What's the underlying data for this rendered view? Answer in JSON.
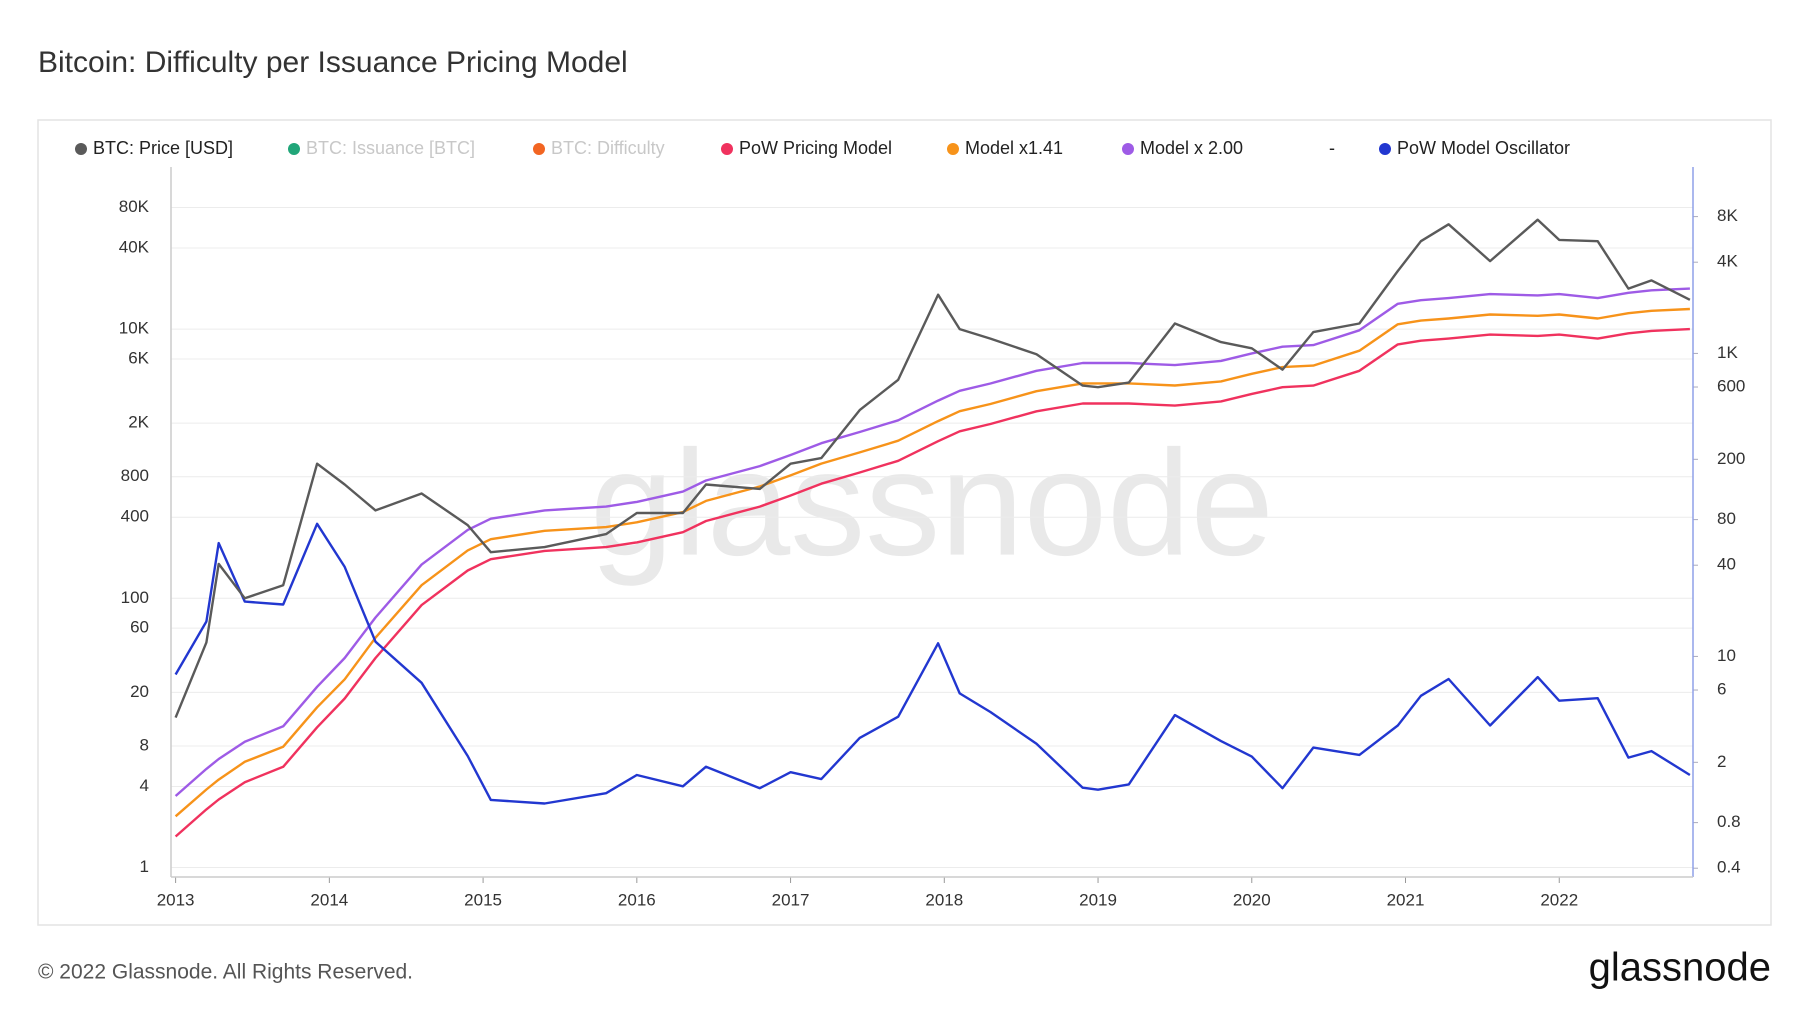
{
  "chart_data": {
    "type": "line",
    "title": "Bitcoin: Difficulty per Issuance Pricing Model",
    "watermark": "glassnode",
    "x": [
      2013.0,
      2013.2,
      2013.28,
      2013.45,
      2013.7,
      2013.92,
      2014.1,
      2014.3,
      2014.6,
      2014.9,
      2015.05,
      2015.4,
      2015.8,
      2016.0,
      2016.3,
      2016.45,
      2016.8,
      2017.0,
      2017.2,
      2017.45,
      2017.7,
      2017.96,
      2018.1,
      2018.3,
      2018.6,
      2018.9,
      2019.0,
      2019.2,
      2019.5,
      2019.8,
      2020.0,
      2020.2,
      2020.4,
      2020.7,
      2020.95,
      2021.1,
      2021.28,
      2021.55,
      2021.86,
      2022.0,
      2022.25,
      2022.45,
      2022.6,
      2022.85
    ],
    "xlim": [
      2012.97,
      2022.87
    ],
    "xticks": [
      2013,
      2014,
      2015,
      2016,
      2017,
      2018,
      2019,
      2020,
      2021,
      2022
    ],
    "ylim": [
      0.85,
      160000
    ],
    "log_y": true,
    "yticks": [
      1,
      4,
      8,
      20,
      60,
      100,
      400,
      800,
      {
        "value": 2000,
        "label": "2K"
      },
      {
        "value": 6000,
        "label": "6K"
      },
      {
        "value": 10000,
        "label": "10K"
      },
      {
        "value": 40000,
        "label": "40K"
      },
      {
        "value": 80000,
        "label": "80K"
      }
    ],
    "y2lim": [
      0.35,
      17000
    ],
    "log_y2": true,
    "y2ticks": [
      0.4,
      0.8,
      2,
      6,
      10,
      40,
      80,
      200,
      600,
      {
        "value": 1000,
        "label": "1K"
      },
      {
        "value": 4000,
        "label": "4K"
      },
      {
        "value": 8000,
        "label": "8K"
      }
    ],
    "grid": true,
    "series": [
      {
        "name": "BTC: Price [USD]",
        "color": "#5a5a5a",
        "visible": true,
        "values": [
          13,
          47,
          180,
          100,
          125,
          1000,
          700,
          450,
          600,
          350,
          220,
          240,
          300,
          430,
          430,
          700,
          650,
          1000,
          1100,
          2500,
          4200,
          18000,
          10000,
          8500,
          6500,
          3800,
          3700,
          4000,
          11000,
          8000,
          7200,
          5000,
          9500,
          11000,
          27000,
          45000,
          60000,
          32000,
          65000,
          46000,
          45000,
          20000,
          23000,
          16500
        ]
      },
      {
        "name": "BTC: Issuance [BTC]",
        "color": "#21a679",
        "visible": false
      },
      {
        "name": "BTC: Difficulty",
        "color": "#f26522",
        "visible": false
      },
      {
        "name": "PoW Pricing Model",
        "color": "#f0325e",
        "visible": true,
        "values": [
          1.7,
          2.7,
          3.2,
          4.3,
          5.6,
          11,
          18,
          36,
          89,
          161,
          195,
          225,
          240,
          260,
          310,
          375,
          480,
          580,
          710,
          860,
          1050,
          1470,
          1740,
          1970,
          2450,
          2800,
          2800,
          2800,
          2700,
          2900,
          3300,
          3700,
          3800,
          4900,
          7700,
          8200,
          8500,
          9100,
          8900,
          9100,
          8500,
          9300,
          9700,
          10000
        ]
      },
      {
        "name": "Model x1.41",
        "color": "#f7931a",
        "visible": true,
        "values": [
          2.4,
          3.8,
          4.5,
          6.1,
          7.9,
          15.5,
          25,
          51,
          125,
          227,
          275,
          317,
          338,
          367,
          437,
          529,
          677,
          818,
          1001,
          1213,
          1481,
          2073,
          2453,
          2778,
          3455,
          3948,
          3948,
          3948,
          3807,
          4089,
          4653,
          5217,
          5358,
          6909,
          10857,
          11562,
          11985,
          12831,
          12549,
          12831,
          11985,
          13113,
          13677,
          14100
        ]
      },
      {
        "name": "Model x 2.00",
        "color": "#9e5be6",
        "visible": true,
        "values": [
          3.4,
          5.4,
          6.4,
          8.6,
          11.2,
          22,
          36,
          72,
          178,
          322,
          390,
          450,
          480,
          520,
          620,
          750,
          960,
          1160,
          1420,
          1720,
          2100,
          2940,
          3480,
          3940,
          4900,
          5600,
          5600,
          5600,
          5400,
          5800,
          6600,
          7400,
          7600,
          9800,
          15400,
          16400,
          17000,
          18200,
          17800,
          18200,
          17000,
          18600,
          19400,
          20000
        ]
      },
      {
        "name": "-",
        "visible": true
      },
      {
        "name": "PoW Model Oscillator",
        "color": "#2237d0",
        "visible": true,
        "axis": "y2",
        "values": [
          7.6,
          17,
          56,
          23,
          22,
          75,
          39,
          12.5,
          6.7,
          2.2,
          1.13,
          1.07,
          1.25,
          1.65,
          1.39,
          1.87,
          1.35,
          1.72,
          1.55,
          2.9,
          4.0,
          12.2,
          5.7,
          4.3,
          2.65,
          1.36,
          1.32,
          1.43,
          4.1,
          2.76,
          2.18,
          1.35,
          2.5,
          2.24,
          3.5,
          5.5,
          7.1,
          3.5,
          7.3,
          5.1,
          5.3,
          2.15,
          2.37,
          1.65
        ]
      }
    ]
  },
  "copyright": "© 2022 Glassnode. All Rights Reserved.",
  "logo": "glassnode"
}
